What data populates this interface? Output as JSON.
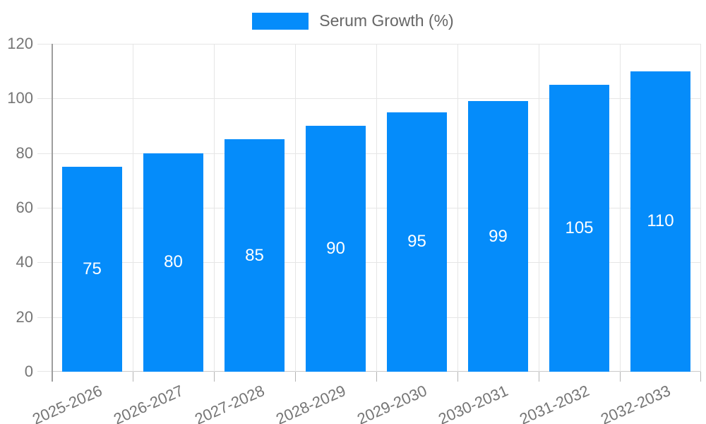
{
  "legend": {
    "label": "Serum Growth (%)",
    "swatch_color": "#058cfa"
  },
  "chart_data": {
    "type": "bar",
    "title": "",
    "categories": [
      "2025-2026",
      "2026-2027",
      "2027-2028",
      "2028-2029",
      "2029-2030",
      "2030-2031",
      "2031-2032",
      "2032-2033"
    ],
    "series": [
      {
        "name": "Serum Growth (%)",
        "values": [
          75,
          80,
          85,
          90,
          95,
          99,
          105,
          110
        ]
      }
    ],
    "bar_labels": [
      "75",
      "80",
      "85",
      "90",
      "95",
      "99",
      "105",
      "110"
    ],
    "ylim": [
      0,
      120
    ],
    "yticks": [
      0,
      20,
      40,
      60,
      80,
      100,
      120
    ],
    "grid": true,
    "legend_position": "top",
    "x_label_rotation_deg": -24,
    "colors": {
      "bar": "#058cfa",
      "bar_label": "#ffffff",
      "grid": "#e6e6e6",
      "axis_line": "#9e9e9e",
      "tick_text": "#757575",
      "legend_text": "#666666",
      "background": "#ffffff"
    }
  }
}
